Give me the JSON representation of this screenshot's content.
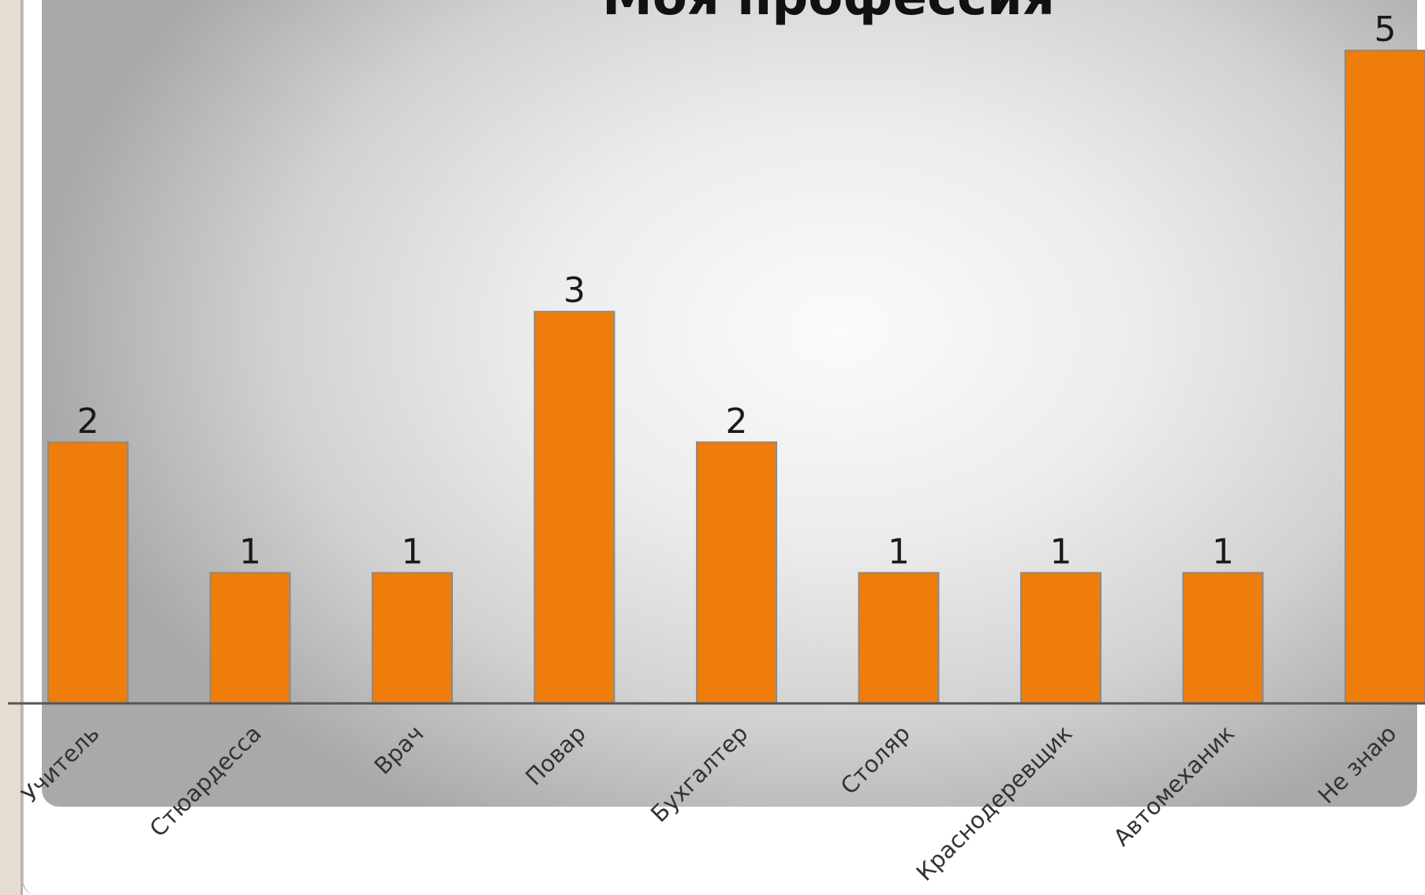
{
  "chart_data": {
    "type": "bar",
    "title": "Моя профессия",
    "categories": [
      "Учитель",
      "Стюардесса",
      "Врач",
      "Повар",
      "Бухгалтер",
      "Столяр",
      "Краснодеревщик",
      "Автомеханик",
      "Не знаю"
    ],
    "values": [
      2,
      1,
      1,
      3,
      2,
      1,
      1,
      1,
      5
    ],
    "data_labels": [
      "2",
      "1",
      "1",
      "3",
      "2",
      "1",
      "1",
      "1",
      "5"
    ],
    "xlabel": "",
    "ylabel": "",
    "ylim": [
      0,
      5
    ],
    "grid": false,
    "legend": "none"
  },
  "colors": {
    "bar": "#ee7d0c",
    "bar_border": "#8a8a8a",
    "axis": "#555555",
    "label": "#333333",
    "data_label": "#1a1a1a"
  }
}
